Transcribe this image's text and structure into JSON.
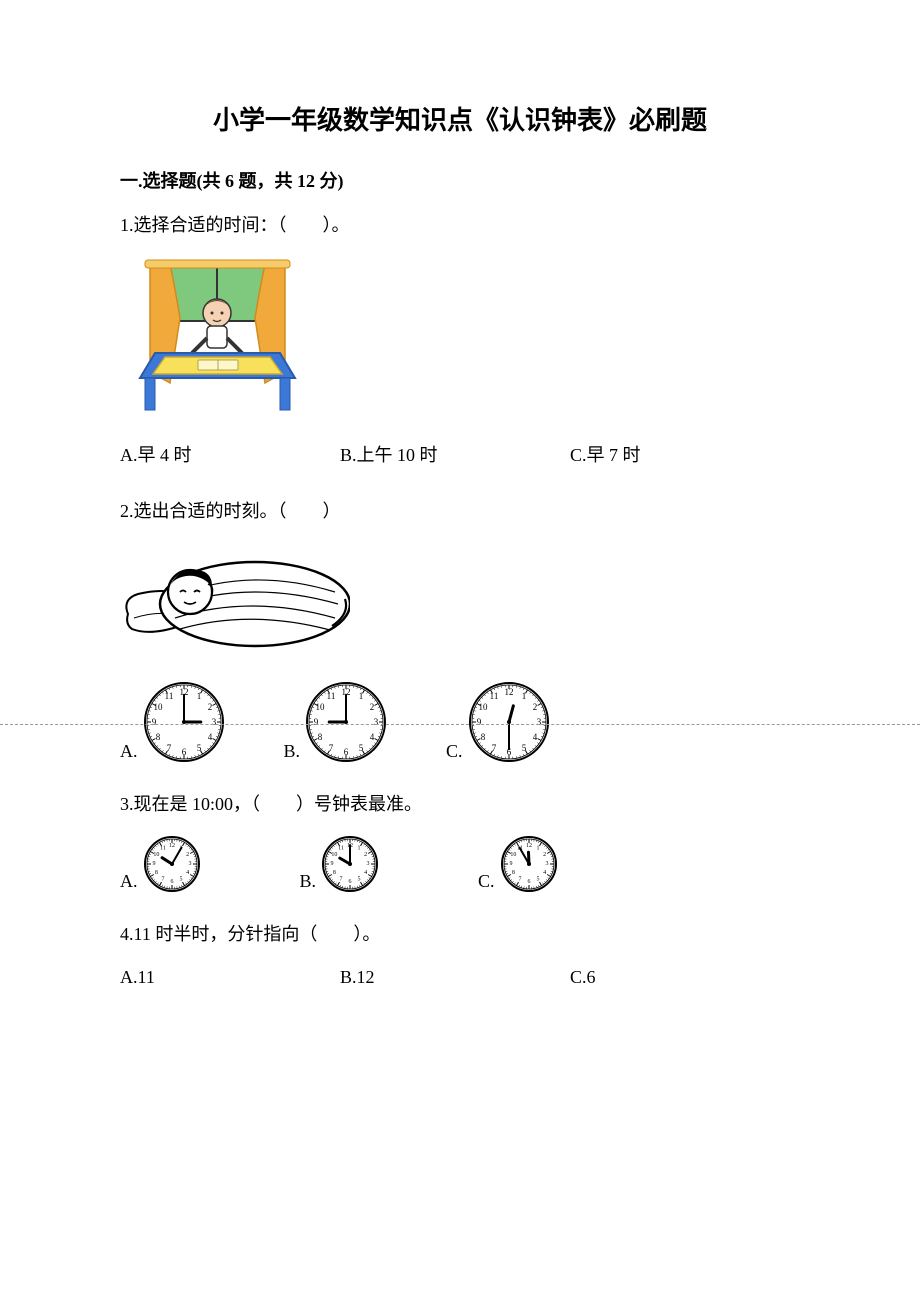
{
  "title": "小学一年级数学知识点《认识钟表》必刷题",
  "section1": {
    "header": "一.选择题(共 6 题，共 12 分)"
  },
  "q1": {
    "text": "1.选择合适的时间：（　　）。",
    "optA": "A.早 4 时",
    "optB": "B.上午 10 时",
    "optC": "C.早 7 时",
    "illustration": {
      "curtain_color": "#f2a93c",
      "window_color": "#7fc97f",
      "table_color": "#3c78d8",
      "cloth_color": "#f7e15a",
      "skin_color": "#f5d2b3",
      "shirt_color": "#ffffff",
      "outline": "#333333"
    }
  },
  "q2": {
    "text": "2.选出合适的时刻。（　　）",
    "optA": "A.",
    "optB": "B.",
    "optC": "C.",
    "clocks": {
      "a": {
        "hour": 3,
        "minute": 0
      },
      "b": {
        "hour": 9,
        "minute": 0
      },
      "c": {
        "hour": 12,
        "minute": 30
      }
    }
  },
  "q3": {
    "text": "3.现在是 10:00，（　　）号钟表最准。",
    "optA": "A.",
    "optB": "B.",
    "optC": "C.",
    "clocks": {
      "a": {
        "hour": 10,
        "minute": 5
      },
      "b": {
        "hour": 10,
        "minute": 0
      },
      "c": {
        "hour": 11,
        "minute": 55
      }
    }
  },
  "q4": {
    "text": "4.11 时半时，分针指向（　　）。",
    "optA": "A.11",
    "optB": "B.12",
    "optC": "C.6"
  },
  "clock_style": {
    "size_large": 80,
    "size_small": 56,
    "face_color": "#ffffff",
    "border_color": "#000000",
    "number_fontsize_large": 9,
    "number_fontsize_small": 6
  }
}
